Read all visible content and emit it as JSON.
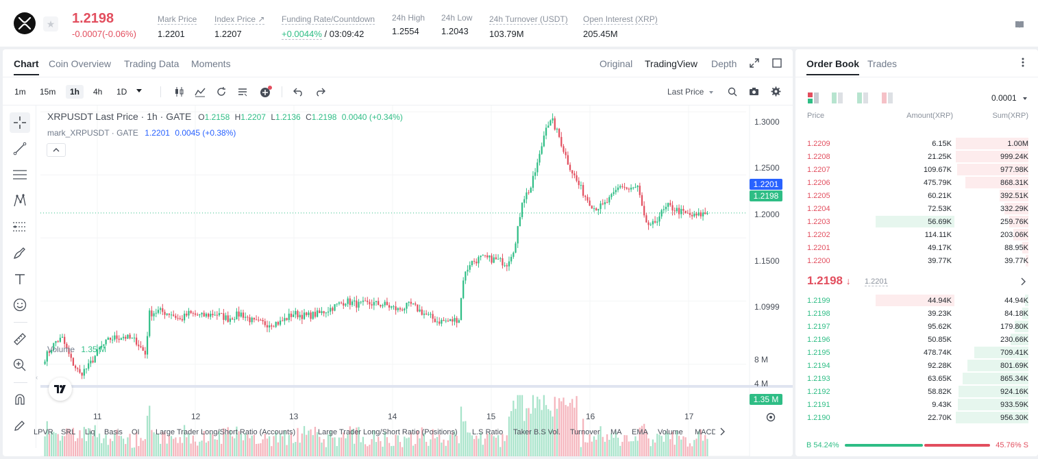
{
  "ticker": {
    "price": "1.2198",
    "change": "-0.0007(-0.06%)",
    "stats": [
      {
        "label": "Mark Price",
        "value": "1.2201"
      },
      {
        "label": "Index Price ↗",
        "value": "1.2207"
      },
      {
        "label": "Funding Rate/Countdown",
        "value_green": "+0.0044%",
        "value": "/ 03:09:42"
      },
      {
        "label": "24h High",
        "value": "1.2554"
      },
      {
        "label": "24h Low",
        "value": "1.2043"
      },
      {
        "label": "24h Turnover (USDT)",
        "value": "103.79M"
      },
      {
        "label": "Open Interest (XRP)",
        "value": "205.45M"
      }
    ]
  },
  "chart_tabs": [
    "Chart",
    "Coin Overview",
    "Trading Data",
    "Moments"
  ],
  "view_tabs": [
    "Original",
    "TradingView",
    "Depth"
  ],
  "timeframes": [
    "1m",
    "15m",
    "1h",
    "4h",
    "1D"
  ],
  "price_type": "Last Price",
  "legend": {
    "symbol": "XRPUSDT Last Price · 1h · GATE",
    "o": "O",
    "o_val": "1.2158",
    "h": "H",
    "h_val": "1.2207",
    "l": "L",
    "l_val": "1.2136",
    "c": "C",
    "c_val": "1.2198",
    "chg": "0.0040 (+0.34%)",
    "mark": "mark_XRPUSDT · GATE",
    "mark_val": "1.2201",
    "mark_chg": "0.0045 (+0.38%)"
  },
  "volume_legend": {
    "label": "Volume",
    "value": "1.35 M"
  },
  "price_axis": [
    "1.3000",
    "1.2500",
    "1.2000",
    "1.1500",
    "1.0999"
  ],
  "price_labels": {
    "mark": "1.2201",
    "last": "1.2198"
  },
  "volume_axis": [
    "8 M",
    "4 M"
  ],
  "volume_label": "1.35 M",
  "time_axis": [
    "11",
    "12",
    "13",
    "14",
    "15",
    "16",
    "17"
  ],
  "indicators": [
    "LPVR",
    "SRL",
    "Liq",
    "Basis",
    "OI",
    "Large Trader Long/Short Ratio (Accounts)",
    "Large Trader Long/Short Ratio (Positions)",
    "L.S Ratio",
    "Taker B.S Vol.",
    "Turnover",
    "MA",
    "EMA",
    "Volume",
    "MACD"
  ],
  "orderbook": {
    "tabs": [
      "Order Book",
      "Trades"
    ],
    "precision": "0.0001",
    "headers": [
      "Price",
      "Amount(XRP)",
      "Sum(XRP)"
    ],
    "asks": [
      {
        "price": "1.2209",
        "amount": "6.15K",
        "sum": "1.00M",
        "depth": 1.0,
        "abar": 0
      },
      {
        "price": "1.2208",
        "amount": "21.25K",
        "sum": "999.24K",
        "depth": 0.999,
        "abar": 0
      },
      {
        "price": "1.2207",
        "amount": "109.67K",
        "sum": "977.98K",
        "depth": 0.978,
        "abar": 0
      },
      {
        "price": "1.2206",
        "amount": "475.79K",
        "sum": "868.31K",
        "depth": 0.868,
        "abar": 0
      },
      {
        "price": "1.2205",
        "amount": "60.21K",
        "sum": "392.51K",
        "depth": 0.393,
        "abar": 0
      },
      {
        "price": "1.2204",
        "amount": "72.53K",
        "sum": "332.29K",
        "depth": 0.332,
        "abar": 0
      },
      {
        "price": "1.2203",
        "amount": "56.69K",
        "sum": "259.76K",
        "depth": 0.26,
        "abar": 1
      },
      {
        "price": "1.2202",
        "amount": "114.11K",
        "sum": "203.06K",
        "depth": 0.203,
        "abar": 0
      },
      {
        "price": "1.2201",
        "amount": "49.17K",
        "sum": "88.95K",
        "depth": 0.089,
        "abar": 0
      },
      {
        "price": "1.2200",
        "amount": "39.77K",
        "sum": "39.77K",
        "depth": 0.04,
        "abar": 0
      }
    ],
    "last_price": "1.2198",
    "mark_price": "1.2201",
    "bids": [
      {
        "price": "1.2199",
        "amount": "44.94K",
        "sum": "44.94K",
        "depth": 0.047,
        "abar": 1
      },
      {
        "price": "1.2198",
        "amount": "39.23K",
        "sum": "84.18K",
        "depth": 0.088,
        "abar": 0
      },
      {
        "price": "1.2197",
        "amount": "95.62K",
        "sum": "179.80K",
        "depth": 0.188,
        "abar": 0
      },
      {
        "price": "1.2196",
        "amount": "50.85K",
        "sum": "230.66K",
        "depth": 0.241,
        "abar": 0
      },
      {
        "price": "1.2195",
        "amount": "478.74K",
        "sum": "709.41K",
        "depth": 0.742,
        "abar": 0
      },
      {
        "price": "1.2194",
        "amount": "92.28K",
        "sum": "801.69K",
        "depth": 0.838,
        "abar": 0
      },
      {
        "price": "1.2193",
        "amount": "63.65K",
        "sum": "865.34K",
        "depth": 0.905,
        "abar": 0
      },
      {
        "price": "1.2192",
        "amount": "58.82K",
        "sum": "924.16K",
        "depth": 0.966,
        "abar": 0
      },
      {
        "price": "1.2191",
        "amount": "9.43K",
        "sum": "933.59K",
        "depth": 0.976,
        "abar": 0
      },
      {
        "price": "1.2190",
        "amount": "22.70K",
        "sum": "956.30K",
        "depth": 1.0,
        "abar": 0
      }
    ],
    "buy_ratio": "B 54.24%",
    "sell_ratio": "45.76% S",
    "buy_pct": 54.24
  },
  "chart_data": {
    "type": "candlestick",
    "symbol": "XRPUSDT",
    "ylim": [
      1.085,
      1.305
    ],
    "x_ticks": [
      "11",
      "12",
      "13",
      "14",
      "15",
      "16",
      "17"
    ],
    "anchors": [
      [
        0,
        1.105
      ],
      [
        5,
        1.118
      ],
      [
        8,
        1.12
      ],
      [
        12,
        1.103
      ],
      [
        16,
        1.092
      ],
      [
        20,
        1.098
      ],
      [
        25,
        1.112
      ],
      [
        30,
        1.12
      ],
      [
        36,
        1.122
      ],
      [
        42,
        1.118
      ],
      [
        46,
        1.108
      ],
      [
        48,
        1.14
      ],
      [
        52,
        1.142
      ],
      [
        58,
        1.14
      ],
      [
        62,
        1.135
      ],
      [
        66,
        1.14
      ],
      [
        72,
        1.138
      ],
      [
        78,
        1.14
      ],
      [
        84,
        1.136
      ],
      [
        90,
        1.14
      ],
      [
        96,
        1.133
      ],
      [
        102,
        1.132
      ],
      [
        108,
        1.133
      ],
      [
        114,
        1.14
      ],
      [
        120,
        1.138
      ],
      [
        126,
        1.14
      ],
      [
        132,
        1.145
      ],
      [
        138,
        1.15
      ],
      [
        144,
        1.147
      ],
      [
        150,
        1.148
      ],
      [
        156,
        1.147
      ],
      [
        162,
        1.143
      ],
      [
        168,
        1.147
      ],
      [
        174,
        1.14
      ],
      [
        180,
        1.134
      ],
      [
        186,
        1.134
      ],
      [
        190,
        1.136
      ],
      [
        192,
        1.168
      ],
      [
        195,
        1.18
      ],
      [
        200,
        1.184
      ],
      [
        206,
        1.183
      ],
      [
        212,
        1.18
      ],
      [
        216,
        1.195
      ],
      [
        219,
        1.23
      ],
      [
        223,
        1.24
      ],
      [
        227,
        1.265
      ],
      [
        230,
        1.29
      ],
      [
        233,
        1.292
      ],
      [
        236,
        1.28
      ],
      [
        240,
        1.26
      ],
      [
        244,
        1.245
      ],
      [
        248,
        1.233
      ],
      [
        252,
        1.224
      ],
      [
        256,
        1.225
      ],
      [
        260,
        1.232
      ],
      [
        264,
        1.242
      ],
      [
        268,
        1.238
      ],
      [
        272,
        1.24
      ],
      [
        275,
        1.215
      ],
      [
        278,
        1.208
      ],
      [
        282,
        1.218
      ],
      [
        286,
        1.225
      ],
      [
        290,
        1.222
      ],
      [
        294,
        1.219
      ],
      [
        298,
        1.217
      ],
      [
        302,
        1.219
      ],
      [
        304,
        1.2198
      ]
    ],
    "volume_scale_M": [
      0,
      10
    ]
  }
}
